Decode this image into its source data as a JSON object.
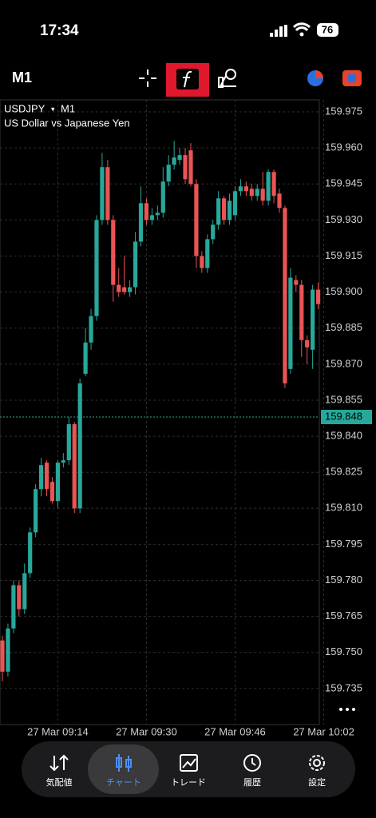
{
  "status_bar": {
    "time": "17:34",
    "battery": "76"
  },
  "toolbar": {
    "timeframe": "M1"
  },
  "chart_data": {
    "type": "candlestick",
    "symbol": "USDJPY",
    "timeframe": "M1",
    "subtitle": "US Dollar vs Japanese Yen",
    "categories": [
      null,
      null,
      null,
      null,
      null,
      null,
      null,
      null,
      null,
      null,
      "27 Mar 09:14",
      null,
      null,
      null,
      null,
      null,
      null,
      null,
      null,
      null,
      null,
      null,
      null,
      null,
      null,
      null,
      "27 Mar 09:30",
      null,
      null,
      null,
      null,
      null,
      null,
      null,
      null,
      null,
      null,
      null,
      null,
      null,
      null,
      null,
      "27 Mar 09:46",
      null,
      null,
      null,
      null,
      null,
      null,
      null,
      null,
      null,
      null,
      null,
      null,
      null,
      null,
      null,
      "27 Mar 10:02"
    ],
    "open": [
      159.755,
      159.742,
      159.76,
      159.778,
      159.768,
      159.783,
      159.8,
      159.818,
      159.829,
      159.821,
      159.813,
      159.829,
      159.83,
      159.845,
      159.81,
      159.866,
      159.879,
      159.89,
      159.93,
      159.952,
      159.93,
      159.903,
      159.902,
      159.9,
      159.902,
      159.921,
      159.937,
      159.93,
      159.932,
      159.933,
      159.946,
      159.953,
      159.955,
      159.957,
      159.959,
      159.945,
      159.915,
      159.91,
      159.922,
      159.928,
      159.939,
      159.93,
      159.932,
      159.942,
      159.944,
      159.943,
      159.94,
      159.943,
      159.938,
      159.95,
      159.941,
      159.935,
      159.868,
      159.905,
      159.903,
      159.88,
      159.876,
      159.901,
      null
    ],
    "high": [
      159.757,
      159.762,
      159.78,
      159.78,
      159.787,
      159.802,
      159.82,
      159.831,
      159.83,
      159.823,
      159.83,
      159.833,
      159.848,
      159.846,
      159.864,
      159.885,
      159.893,
      159.932,
      159.958,
      159.955,
      159.932,
      159.91,
      159.915,
      159.905,
      159.925,
      159.944,
      159.939,
      159.935,
      159.936,
      159.952,
      159.957,
      159.963,
      159.96,
      159.96,
      159.962,
      159.947,
      159.917,
      159.924,
      159.93,
      159.942,
      159.94,
      159.941,
      159.944,
      159.947,
      159.946,
      159.945,
      159.945,
      159.95,
      159.951,
      159.951,
      159.943,
      159.936,
      159.91,
      159.907,
      159.905,
      159.882,
      159.903,
      159.904,
      null
    ],
    "low": [
      159.738,
      159.74,
      159.758,
      159.765,
      159.766,
      159.781,
      159.798,
      159.815,
      159.815,
      159.812,
      159.81,
      159.827,
      159.828,
      159.808,
      159.808,
      159.865,
      159.876,
      159.888,
      159.928,
      159.928,
      159.896,
      159.898,
      159.899,
      159.898,
      159.899,
      159.919,
      159.928,
      159.928,
      159.93,
      159.931,
      159.944,
      159.951,
      159.953,
      159.945,
      159.944,
      159.91,
      159.908,
      159.908,
      159.92,
      159.926,
      159.928,
      159.928,
      159.93,
      159.94,
      159.94,
      159.938,
      159.938,
      159.936,
      159.936,
      159.937,
      159.933,
      159.86,
      159.866,
      159.9,
      159.873,
      159.87,
      159.868,
      159.893,
      null
    ],
    "close": [
      159.742,
      159.76,
      159.778,
      159.768,
      159.783,
      159.8,
      159.818,
      159.828,
      159.818,
      159.813,
      159.829,
      159.83,
      159.845,
      159.81,
      159.862,
      159.879,
      159.89,
      159.93,
      159.952,
      159.93,
      159.903,
      159.9,
      159.9,
      159.902,
      159.921,
      159.937,
      159.93,
      159.932,
      159.933,
      159.946,
      159.953,
      159.956,
      159.957,
      159.947,
      159.945,
      159.915,
      159.91,
      159.922,
      159.928,
      159.939,
      159.93,
      159.938,
      159.942,
      159.944,
      159.942,
      159.94,
      159.943,
      159.938,
      159.95,
      159.94,
      159.935,
      159.862,
      159.906,
      159.903,
      159.88,
      159.877,
      159.901,
      159.895,
      null
    ],
    "up_color": "#27a89a",
    "down_color": "#ea5455",
    "ylim": [
      159.72,
      159.98
    ],
    "yticks": [
      159.975,
      {
        "value": 159.96,
        "label": "159.960"
      },
      159.945,
      {
        "value": 159.93,
        "label": "159.930"
      },
      159.915,
      {
        "value": 159.9,
        "label": "159.900"
      },
      159.885,
      {
        "value": 159.87,
        "label": "159.870"
      },
      159.855,
      {
        "value": 159.84,
        "label": "159.840"
      },
      159.825,
      {
        "value": 159.81,
        "label": "159.810"
      },
      159.795,
      {
        "value": 159.78,
        "label": "159.780"
      },
      159.765,
      {
        "value": 159.75,
        "label": "159.750"
      },
      159.735
    ],
    "price_line": {
      "value": 159.848,
      "label": "159.848"
    },
    "grid": true
  },
  "nav": {
    "items": [
      "気配値",
      "チャート",
      "トレード",
      "履歴",
      "設定"
    ]
  }
}
